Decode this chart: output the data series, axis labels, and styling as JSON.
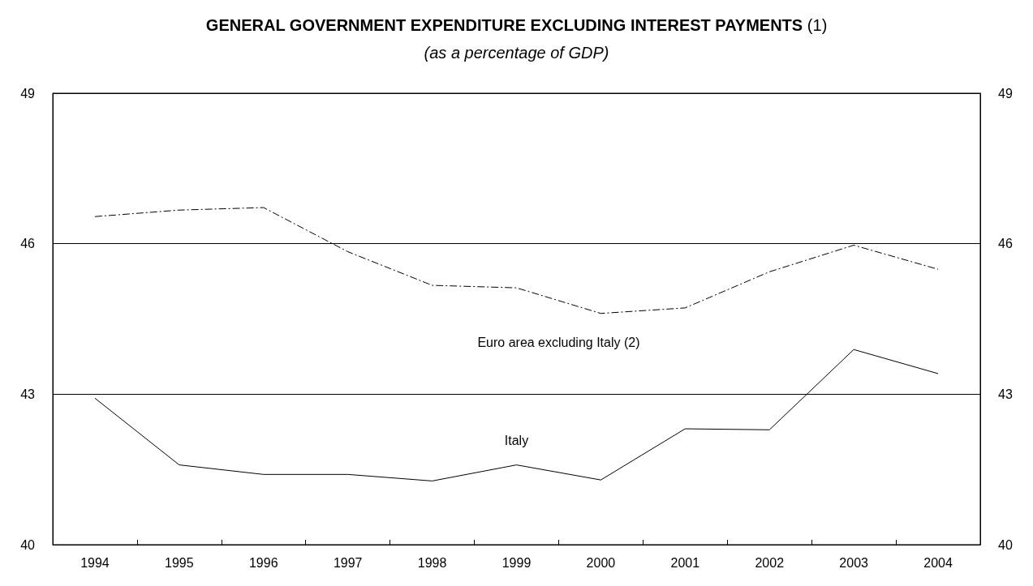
{
  "chart_data": {
    "type": "line",
    "title": "GENERAL GOVERNMENT EXPENDITURE EXCLUDING INTEREST PAYMENTS (1)",
    "subtitle": "(as a percentage of GDP)",
    "categories": [
      "1994",
      "1995",
      "1996",
      "1997",
      "1998",
      "1999",
      "2000",
      "2001",
      "2002",
      "2003",
      "2004"
    ],
    "series": [
      {
        "name": "Euro area excluding Italy (2)",
        "color": "#000000",
        "line_style": "dashed",
        "values": [
          46.54,
          46.67,
          46.72,
          45.84,
          45.17,
          45.12,
          44.61,
          44.72,
          45.44,
          45.97,
          45.49
        ]
      },
      {
        "name": "Italy",
        "color": "#000000",
        "line_style": "solid",
        "values": [
          42.92,
          41.59,
          41.4,
          41.4,
          41.27,
          41.59,
          41.29,
          42.31,
          42.29,
          43.89,
          43.41
        ]
      }
    ],
    "ylim": [
      40,
      49
    ],
    "yticks": [
      40,
      43,
      46,
      49
    ],
    "y2lim": [
      40,
      49
    ],
    "y2ticks": [
      40,
      43,
      46,
      49
    ],
    "grid": "y",
    "marker": "none"
  }
}
